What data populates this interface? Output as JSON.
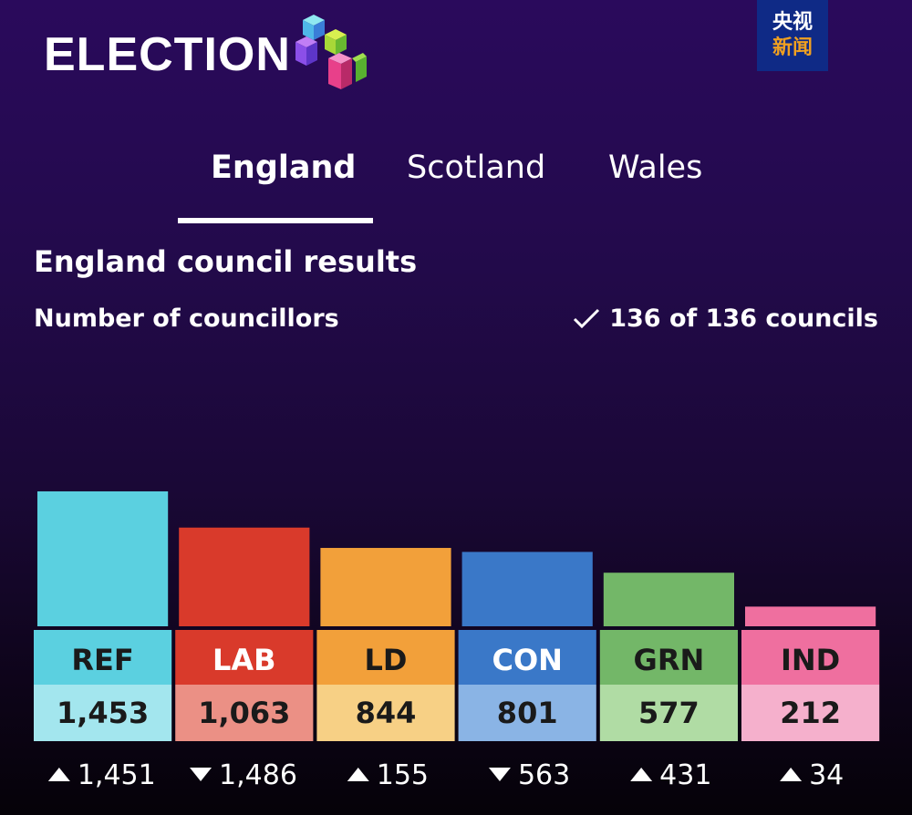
{
  "header": {
    "logo_text": "ELECTION",
    "badge_line1": "央视",
    "badge_line2": "新闻"
  },
  "tabs": [
    {
      "label": "England",
      "active": true
    },
    {
      "label": "Scotland",
      "active": false
    },
    {
      "label": "Wales",
      "active": false
    }
  ],
  "title": "England council results",
  "subtitle": "Number of councillors",
  "progress": "136 of 136 councils",
  "chart_data": {
    "type": "bar",
    "categories": [
      "REF",
      "LAB",
      "LD",
      "CON",
      "GRN",
      "IND"
    ],
    "values": [
      1453,
      1063,
      844,
      801,
      577,
      212
    ],
    "value_labels": [
      "1,453",
      "1,063",
      "844",
      "801",
      "577",
      "212"
    ],
    "changes": [
      {
        "direction": "up",
        "label": "1,451"
      },
      {
        "direction": "down",
        "label": "1,486"
      },
      {
        "direction": "up",
        "label": "155"
      },
      {
        "direction": "down",
        "label": "563"
      },
      {
        "direction": "up",
        "label": "431"
      },
      {
        "direction": "up",
        "label": "34"
      }
    ],
    "colors": [
      "#5bd0e0",
      "#d93a2b",
      "#f2a03a",
      "#3a78c8",
      "#73b768",
      "#ef6f9f"
    ],
    "light_colors": [
      "#a3e6ee",
      "#eb9085",
      "#f7d085",
      "#8ab4e5",
      "#b0dca4",
      "#f5b0cc"
    ],
    "title": "England council results",
    "ylabel": "Number of councillors",
    "ylim": [
      0,
      1453
    ]
  }
}
